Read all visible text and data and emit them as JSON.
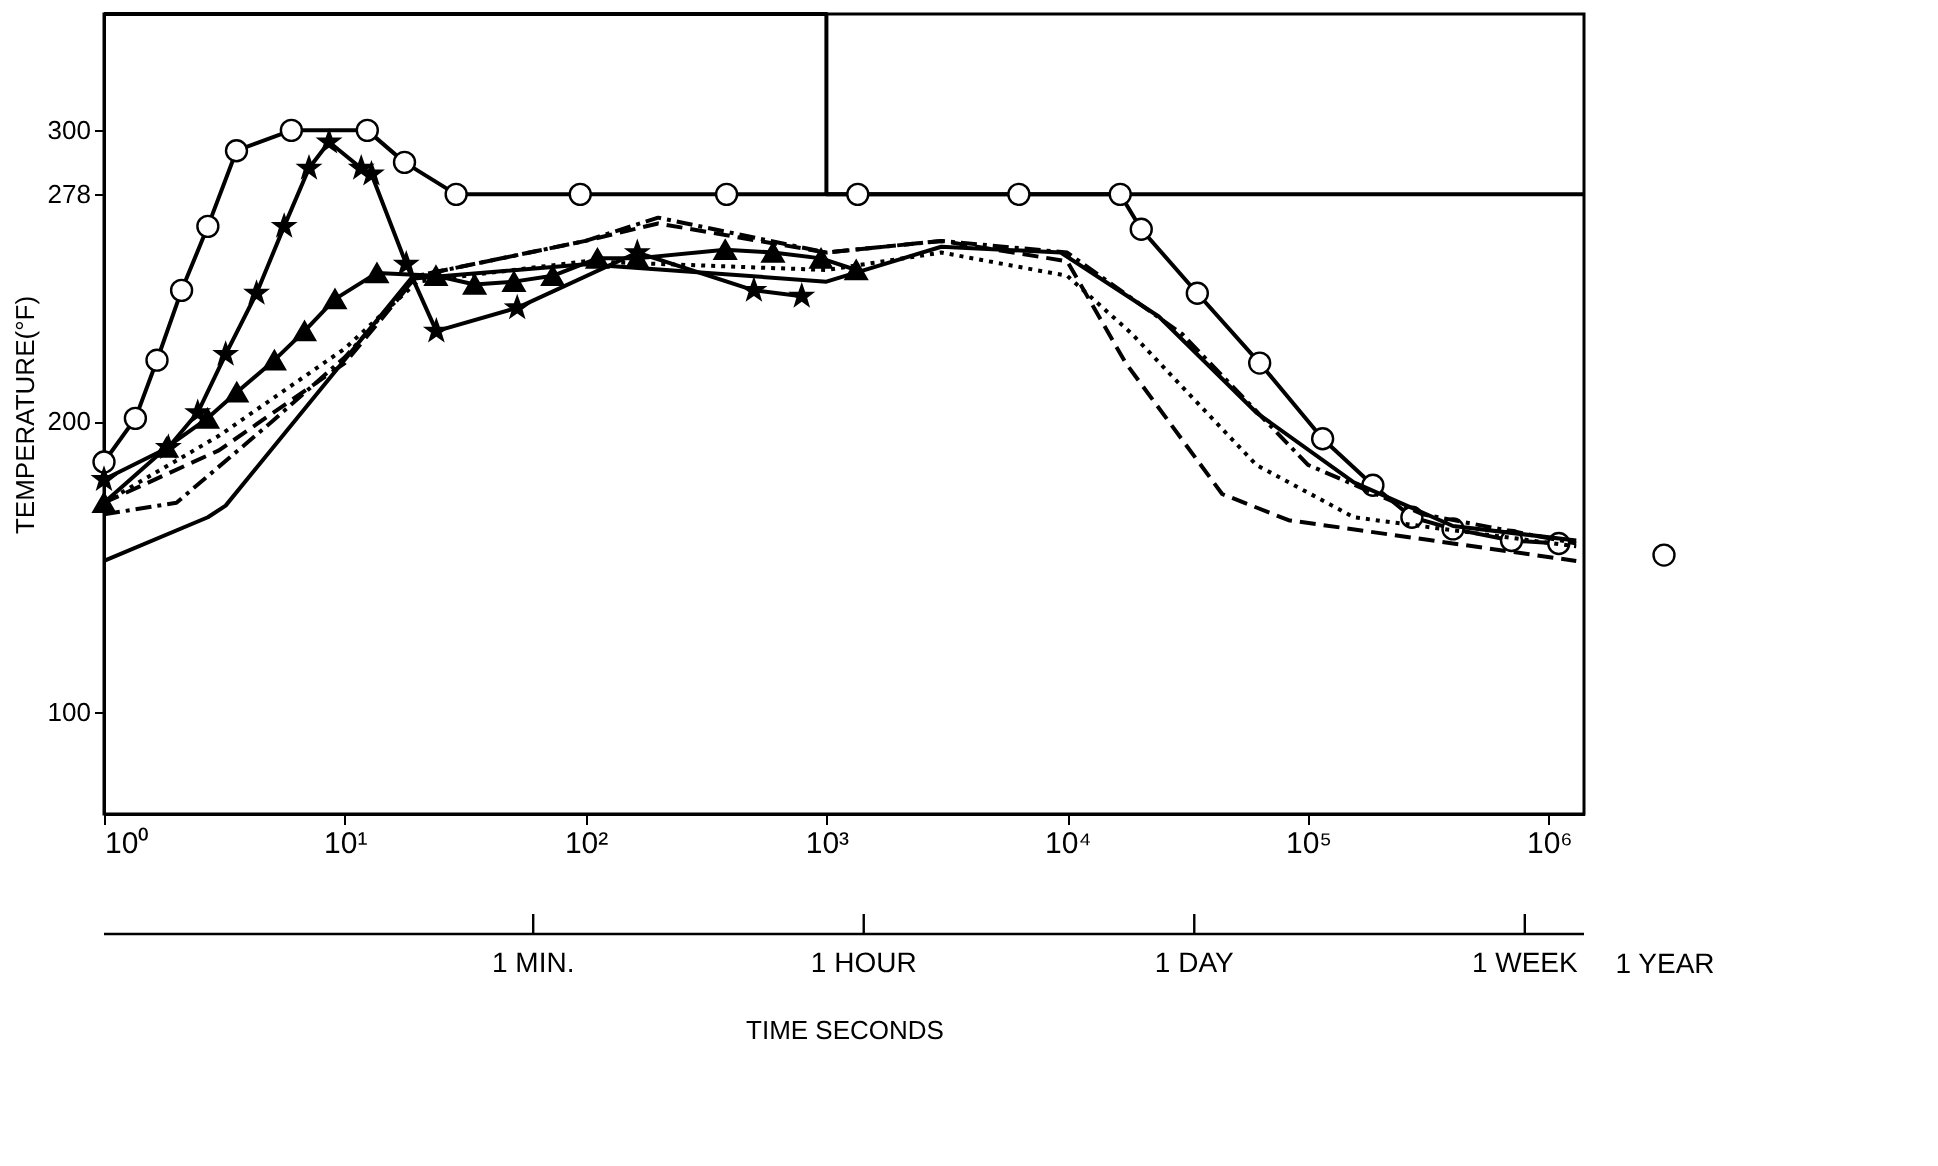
{
  "chart_data": [
    {
      "type": "line",
      "xlabel": "TIME SECONDS",
      "ylabel": "TEMPERATURE(°F)",
      "log": "x",
      "grid": false,
      "legend": false,
      "xlim": [
        1,
        1400000
      ],
      "xticks": [
        {
          "value": 1,
          "label": "10⁰"
        },
        {
          "value": 10,
          "label": "10¹"
        },
        {
          "value": 100,
          "label": "10²"
        },
        {
          "value": 1000,
          "label": "10³"
        },
        {
          "value": 10000,
          "label": "10⁴"
        },
        {
          "value": 100000,
          "label": "10⁵"
        },
        {
          "value": 1000000,
          "label": "10⁶"
        }
      ],
      "ylim": [
        65,
        340
      ],
      "yticks": [
        100,
        200,
        278,
        300
      ],
      "annotations": [
        "1 MIN.",
        "1 HOUR",
        "1 DAY",
        "1 WEEK"
      ],
      "series": [
        {
          "type": "step",
          "color": "#000000",
          "marker": "none",
          "line_style": "solid",
          "x": [
            1,
            1000,
            1400000
          ],
          "values": [
            340,
            278,
            278
          ]
        },
        {
          "color": "#000000",
          "marker": "circle",
          "line_style": "solid",
          "x": [
            1,
            1.35,
            1.66,
            2.1,
            2.7,
            3.55,
            6.0,
            12.4,
            17.7,
            29,
            95,
            385,
            1350,
            6300,
            16600,
            20300,
            34700,
            63000,
            115000,
            186000,
            270000,
            400000,
            700000,
            1100000
          ],
          "values": [
            186,
            201,
            221,
            245,
            267,
            293,
            300,
            300,
            289,
            278,
            278,
            278,
            278,
            278,
            278,
            266,
            244,
            220,
            194,
            178,
            167,
            163,
            159,
            158
          ]
        },
        {
          "color": "#000000",
          "marker": "star",
          "line_style": "solid",
          "x": [
            1,
            1.85,
            2.45,
            3.2,
            4.3,
            5.6,
            7.1,
            8.6,
            11.7,
            12.9,
            18,
            24,
            52,
            164,
            500,
            790
          ],
          "values": [
            180,
            191,
            203,
            223,
            244,
            267,
            287,
            296,
            287,
            285,
            254,
            231,
            239,
            258,
            245,
            243
          ]
        },
        {
          "color": "#000000",
          "marker": "triangle",
          "line_style": "solid",
          "x": [
            1,
            1.82,
            2.69,
            3.56,
            5.1,
            6.8,
            9.1,
            13.6,
            23.9,
            34.6,
            50.4,
            73,
            112,
            164,
            380,
            600,
            950,
            1330
          ],
          "values": [
            172,
            191,
            201,
            210,
            221,
            231,
            242,
            251,
            250,
            247,
            248,
            250,
            256,
            256,
            259,
            258,
            256,
            252
          ]
        },
        {
          "color": "#000000",
          "marker": "none",
          "line_style": "solid",
          "x": [
            1,
            2.7,
            3.2,
            18.8,
            100,
            1000,
            3000,
            9400,
            24000,
            61000,
            155000,
            400000,
            1300000
          ],
          "values": [
            152,
            167,
            171,
            249,
            254,
            248,
            260,
            258,
            236,
            203,
            179,
            164,
            159
          ]
        },
        {
          "color": "#000000",
          "marker": "none",
          "line_style": "dashed",
          "x": [
            1,
            3,
            10,
            20,
            100,
            200,
            1000,
            3000,
            10000,
            17500,
            44000,
            83000,
            1300000
          ],
          "values": [
            172,
            190,
            220,
            250,
            262,
            268,
            258,
            262,
            255,
            220,
            175,
            166,
            152
          ]
        },
        {
          "color": "#000000",
          "marker": "none",
          "line_style": "dotted",
          "x": [
            1,
            3,
            10,
            20,
            100,
            1000,
            3000,
            10000,
            18600,
            61000,
            155000,
            1300000
          ],
          "values": [
            172,
            195,
            225,
            248,
            255,
            252,
            258,
            250,
            230,
            185,
            167,
            157
          ]
        },
        {
          "color": "#000000",
          "marker": "none",
          "line_style": "dashdot",
          "x": [
            1,
            2,
            5,
            10,
            20,
            100,
            200,
            1000,
            3000,
            10000,
            30000,
            100000,
            300000,
            1300000
          ],
          "values": [
            168,
            172,
            200,
            222,
            250,
            262,
            270,
            258,
            262,
            258,
            230,
            185,
            168,
            158
          ]
        }
      ]
    },
    {
      "type": "scatter",
      "categories": [
        "1 YEAR"
      ],
      "ylim": [
        65,
        340
      ],
      "tick_labels": "x",
      "legend": false,
      "grid": false,
      "series": [
        {
          "color": "#000000",
          "marker": "circle",
          "values": [
            154
          ]
        }
      ]
    }
  ]
}
